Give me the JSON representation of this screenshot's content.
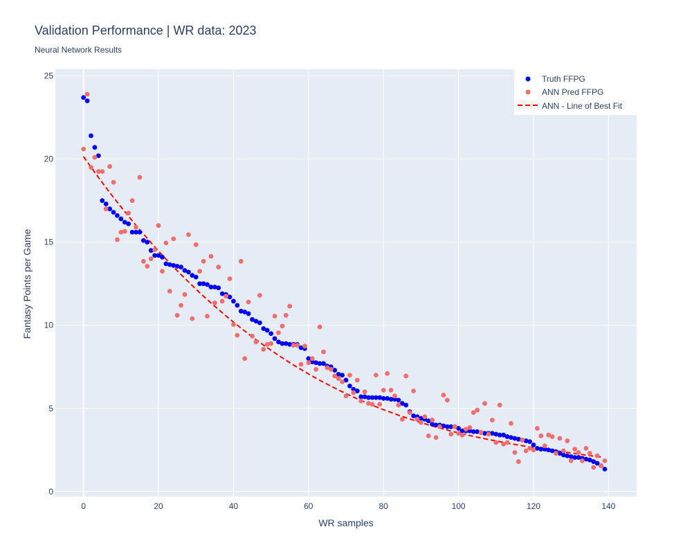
{
  "chart_data": {
    "type": "scatter",
    "title": "Validation Performance | WR data: 2023",
    "subtitle": "Neural Network Results",
    "xlabel": "WR samples",
    "ylabel": "Fantasy Points per Game",
    "xlim": [
      -7.5,
      147.5
    ],
    "ylim": [
      -0.3,
      25.4
    ],
    "xticks": [
      0,
      20,
      40,
      60,
      80,
      100,
      120,
      140
    ],
    "yticks": [
      0,
      5,
      10,
      15,
      20,
      25
    ],
    "grid": true,
    "legend_position": "top-right",
    "colors": {
      "plot_bg": "#e5ecf6",
      "grid": "#ffffff",
      "truth": "#0000ff",
      "pred": "#ef6f6f",
      "fit": "#ff0000"
    },
    "series": [
      {
        "name": "Truth FFPG",
        "kind": "markers",
        "values": [
          23.7,
          23.5,
          21.4,
          20.7,
          20.2,
          17.5,
          17.3,
          17.0,
          16.8,
          16.6,
          16.4,
          16.2,
          16.1,
          15.6,
          15.6,
          15.6,
          15.1,
          15.0,
          14.5,
          14.2,
          14.2,
          14.1,
          13.7,
          13.65,
          13.6,
          13.55,
          13.5,
          13.3,
          13.2,
          13.0,
          12.9,
          12.5,
          12.5,
          12.45,
          12.3,
          12.3,
          12.25,
          11.9,
          11.85,
          11.7,
          11.45,
          11.2,
          10.85,
          10.8,
          10.7,
          10.35,
          10.25,
          10.15,
          9.8,
          9.7,
          9.5,
          9.2,
          9.0,
          8.9,
          8.9,
          8.85,
          8.85,
          8.85,
          8.65,
          8.6,
          8.0,
          7.8,
          7.75,
          7.7,
          7.7,
          7.55,
          7.5,
          7.3,
          7.05,
          7.0,
          6.7,
          6.35,
          6.15,
          6.05,
          5.7,
          5.7,
          5.65,
          5.65,
          5.65,
          5.65,
          5.6,
          5.6,
          5.55,
          5.55,
          5.5,
          5.3,
          5.2,
          4.8,
          4.55,
          4.5,
          4.4,
          4.35,
          4.25,
          4.05,
          4.0,
          4.0,
          3.95,
          3.9,
          3.9,
          3.9,
          3.8,
          3.65,
          3.65,
          3.65,
          3.6,
          3.6,
          3.55,
          3.5,
          3.5,
          3.5,
          3.45,
          3.4,
          3.4,
          3.3,
          3.25,
          3.2,
          3.15,
          3.1,
          3.05,
          3.0,
          2.8,
          2.6,
          2.55,
          2.55,
          2.5,
          2.45,
          2.4,
          2.3,
          2.2,
          2.15,
          2.1,
          2.05,
          2.05,
          2.0,
          1.95,
          1.9,
          1.8,
          1.7,
          1.55,
          1.35
        ]
      },
      {
        "name": "ANN Pred FFPG",
        "kind": "markers",
        "values": [
          20.6,
          23.9,
          19.5,
          20.1,
          19.25,
          19.25,
          17.0,
          19.55,
          18.6,
          15.15,
          15.6,
          15.65,
          16.75,
          17.5,
          15.9,
          18.9,
          13.85,
          13.55,
          14.0,
          14.55,
          16.0,
          13.25,
          14.95,
          12.05,
          15.2,
          10.6,
          11.2,
          11.85,
          15.45,
          10.4,
          14.85,
          13.25,
          13.85,
          10.55,
          14.15,
          11.35,
          13.5,
          11.45,
          11.75,
          12.8,
          10.05,
          9.4,
          13.85,
          8.0,
          11.4,
          9.35,
          9.0,
          11.8,
          8.55,
          8.85,
          8.9,
          10.55,
          9.55,
          9.95,
          10.6,
          11.15,
          8.8,
          8.8,
          7.65,
          8.75,
          7.75,
          8.0,
          7.35,
          9.9,
          8.4,
          7.45,
          7.35,
          6.95,
          6.8,
          6.6,
          5.75,
          7.0,
          5.95,
          6.7,
          5.45,
          6.0,
          5.3,
          5.25,
          7.0,
          5.25,
          6.1,
          7.1,
          6.1,
          5.75,
          5.2,
          4.35,
          6.95,
          4.75,
          6.05,
          4.35,
          4.15,
          4.5,
          3.35,
          4.3,
          3.25,
          3.9,
          5.8,
          5.5,
          3.45,
          3.9,
          3.5,
          3.4,
          3.75,
          3.85,
          4.75,
          4.9,
          3.55,
          5.3,
          3.45,
          4.3,
          2.95,
          5.2,
          2.85,
          2.95,
          4.1,
          2.35,
          1.8,
          3.1,
          2.45,
          2.6,
          2.5,
          3.8,
          3.35,
          2.75,
          3.4,
          3.3,
          2.3,
          3.2,
          2.45,
          3.05,
          1.85,
          2.55,
          2.35,
          1.85,
          2.6,
          2.3,
          1.45,
          2.15,
          1.55,
          1.85
        ]
      },
      {
        "name": "ANN - Line of Best Fit",
        "kind": "line",
        "dash": "dash",
        "values": [
          20.15,
          19.51,
          18.89,
          18.28,
          17.69,
          17.12,
          16.56,
          16.01,
          15.49,
          14.97,
          14.47,
          13.98,
          13.51,
          13.05,
          12.61,
          12.17,
          11.75,
          11.34,
          10.95,
          10.56,
          10.19,
          9.83,
          9.48,
          9.14,
          8.81,
          8.5,
          8.19,
          7.9,
          7.61,
          7.34,
          7.07,
          6.82,
          6.57,
          6.34,
          6.11,
          5.89,
          5.68,
          5.48,
          5.29,
          5.1,
          4.92,
          4.76,
          4.59,
          4.44,
          4.29,
          4.15,
          4.01,
          3.88,
          3.76,
          3.64,
          3.53,
          3.42,
          3.32,
          3.22,
          3.13,
          3.04,
          2.96,
          2.87,
          2.8,
          2.72,
          2.65,
          2.58,
          2.51,
          2.45,
          2.38,
          2.32,
          2.26,
          2.19,
          2.13,
          2.07
        ],
        "x_step": 2
      }
    ]
  }
}
